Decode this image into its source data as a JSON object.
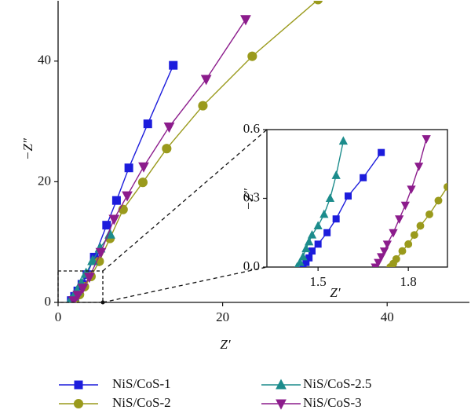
{
  "chart_data": [
    {
      "type": "line",
      "xlabel": "Z′",
      "ylabel": "−Z″",
      "xlim": [
        0,
        50
      ],
      "ylim": [
        0,
        50
      ],
      "xticks": [
        0,
        20,
        40
      ],
      "yticks": [
        0,
        20,
        40
      ],
      "legend": "bottom",
      "series": [
        {
          "name": "NiS/CoS-1",
          "color": "#1c1cdc",
          "marker": "square",
          "x": [
            1.6,
            2.0,
            2.4,
            2.9,
            3.5,
            4.4,
            5.9,
            7.1,
            8.6,
            10.9,
            14.0
          ],
          "values": [
            0.3,
            1.0,
            1.9,
            3.0,
            4.6,
            7.5,
            12.8,
            16.9,
            22.3,
            29.6,
            39.3
          ]
        },
        {
          "name": "NiS/CoS-2",
          "color": "#9a9a1c",
          "marker": "circle",
          "x": [
            2.0,
            2.6,
            3.2,
            4.0,
            5.0,
            6.3,
            7.9,
            10.3,
            13.2,
            17.6,
            23.6,
            31.6
          ],
          "values": [
            0.3,
            1.3,
            2.6,
            4.3,
            6.8,
            10.6,
            15.4,
            19.9,
            25.5,
            32.6,
            40.8,
            50.2
          ]
        },
        {
          "name": "NiS/CoS-2.5",
          "color": "#1c8c8c",
          "marker": "triangle-up",
          "x": [
            1.5,
            1.9,
            2.3,
            2.8,
            3.4,
            4.2,
            5.1,
            6.3
          ],
          "values": [
            0.3,
            1.0,
            1.9,
            3.2,
            4.8,
            6.9,
            9.0,
            11.3
          ]
        },
        {
          "name": "NiS/CoS-3",
          "color": "#8c1c8c",
          "marker": "triangle-down",
          "x": [
            1.9,
            2.4,
            3.0,
            3.8,
            5.2,
            6.8,
            8.4,
            10.4,
            13.5,
            18.0,
            22.8
          ],
          "values": [
            0.3,
            1.2,
            2.4,
            4.2,
            8.3,
            13.8,
            17.7,
            22.5,
            29.1,
            37.0,
            46.9
          ]
        }
      ]
    },
    {
      "type": "line",
      "xlabel": "Z′",
      "ylabel": "−Z″",
      "xlim": [
        1.33,
        1.93
      ],
      "ylim": [
        0,
        0.6
      ],
      "xticks": [
        1.5,
        1.8
      ],
      "yticks": [
        {
          "value": 0,
          "label": "0.0"
        },
        0.3,
        0.6
      ],
      "series": [
        {
          "color": "#1c1cdc",
          "marker": "square",
          "x": [
            1.45,
            1.46,
            1.47,
            1.48,
            1.5,
            1.53,
            1.56,
            1.6,
            1.65,
            1.71
          ],
          "values": [
            0,
            0.02,
            0.04,
            0.07,
            0.1,
            0.15,
            0.21,
            0.31,
            0.39,
            0.5
          ]
        },
        {
          "color": "#9a9a1c",
          "marker": "circle",
          "x": [
            1.74,
            1.75,
            1.76,
            1.78,
            1.8,
            1.82,
            1.84,
            1.87,
            1.9,
            1.93
          ],
          "values": [
            0,
            0.015,
            0.035,
            0.07,
            0.1,
            0.14,
            0.18,
            0.23,
            0.29,
            0.35
          ]
        },
        {
          "color": "#1c8c8c",
          "marker": "triangle-up",
          "x": [
            1.43,
            1.44,
            1.45,
            1.46,
            1.47,
            1.48,
            1.5,
            1.52,
            1.54,
            1.56,
            1.584
          ],
          "values": [
            0,
            0.02,
            0.045,
            0.08,
            0.11,
            0.14,
            0.18,
            0.23,
            0.3,
            0.4,
            0.55
          ]
        },
        {
          "color": "#8c1c8c",
          "marker": "triangle-down",
          "x": [
            1.69,
            1.7,
            1.71,
            1.72,
            1.73,
            1.75,
            1.77,
            1.79,
            1.81,
            1.835,
            1.86
          ],
          "values": [
            0,
            0.02,
            0.045,
            0.07,
            0.1,
            0.15,
            0.21,
            0.27,
            0.34,
            0.44,
            0.56
          ]
        }
      ]
    }
  ]
}
